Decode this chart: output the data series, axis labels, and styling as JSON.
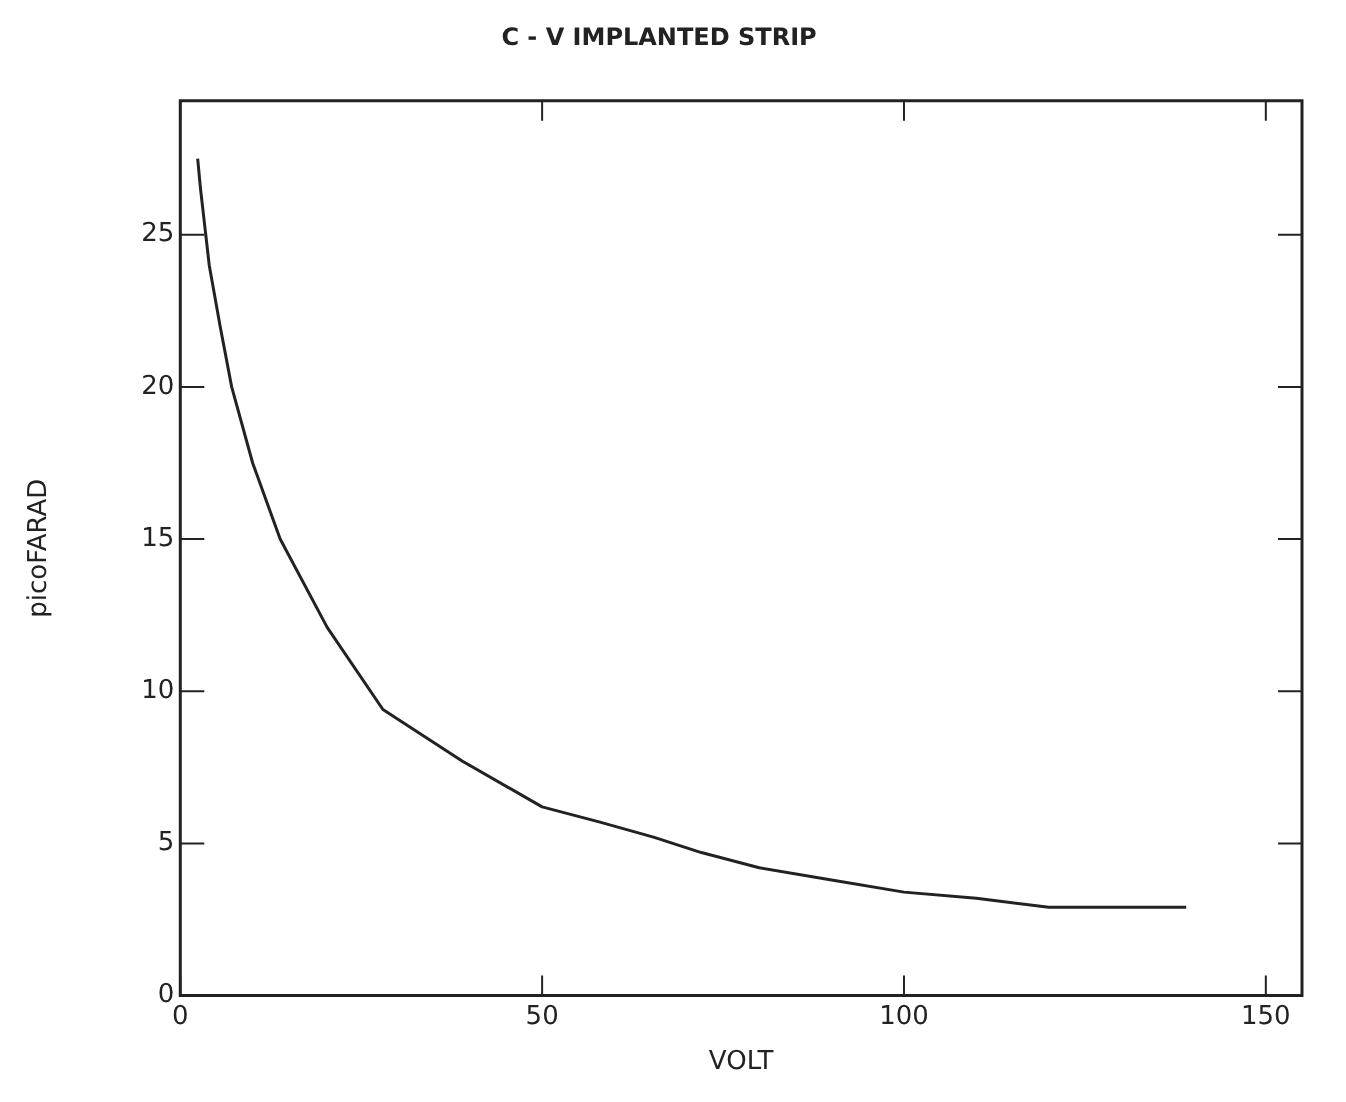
{
  "chart_data": {
    "type": "line",
    "title": "C - V IMPLANTED STRIP",
    "xlabel": "VOLT",
    "ylabel": "picoFARAD",
    "series": [
      {
        "color": "#222222",
        "x": [
          2.4,
          2.8,
          4,
          5.5,
          7.1,
          10,
          13.8,
          20.3,
          28,
          39,
          50,
          58,
          65.5,
          72,
          80,
          90,
          100,
          110,
          120,
          130,
          139
        ],
        "values": [
          27.5,
          26.5,
          24,
          22,
          20,
          17.5,
          15,
          12.1,
          9.4,
          7.7,
          6.2,
          5.7,
          5.2,
          4.7,
          4.2,
          3.8,
          3.4,
          3.2,
          2.9,
          2.9,
          2.9
        ]
      }
    ],
    "xlim": [
      0,
      155
    ],
    "ylim": [
      0,
      29.4
    ],
    "xticks": [
      0,
      50,
      100,
      150
    ],
    "yticks": [
      0,
      5,
      10,
      15,
      20,
      25
    ],
    "grid": false,
    "legend": false,
    "marker": "none",
    "line_style": "solid"
  }
}
